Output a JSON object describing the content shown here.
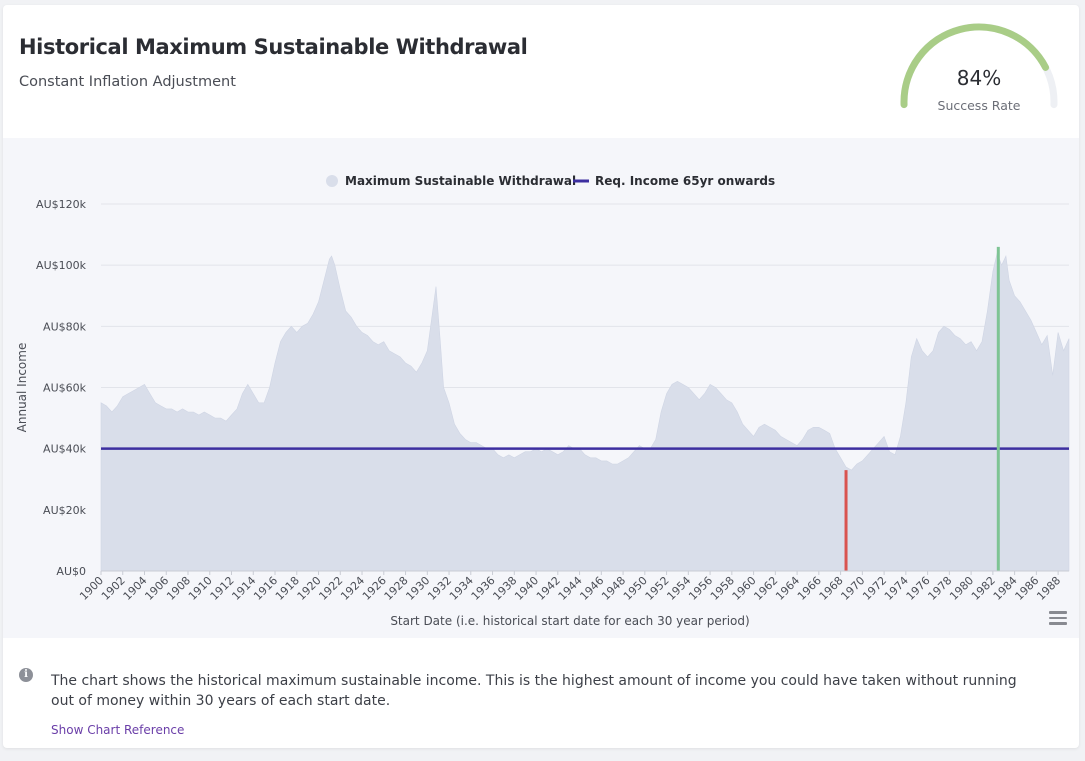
{
  "header": {
    "title": "Historical Maximum Sustainable Withdrawal",
    "subtitle": "Constant Inflation Adjustment"
  },
  "gauge": {
    "value": 84,
    "value_label": "84%",
    "label": "Success Rate",
    "color": "#a9cd87",
    "track_color": "#eef0f4"
  },
  "info": {
    "text": "The chart shows the historical maximum sustainable income. This is the highest amount of income you could have taken without running out of money within 30 years of each start date.",
    "link_label": "Show Chart Reference"
  },
  "chart_data": {
    "type": "area",
    "title": "",
    "xlabel": "Start Date (i.e. historical start date for each 30 year period)",
    "ylabel": "Annual Income",
    "x_range": [
      1900.0,
      1989.0
    ],
    "ylim": [
      0,
      120000
    ],
    "yticks": [
      0,
      20000,
      40000,
      60000,
      80000,
      100000,
      120000
    ],
    "ytick_labels": [
      "AU$0",
      "AU$20k",
      "AU$40k",
      "AU$60k",
      "AU$80k",
      "AU$100k",
      "AU$120k"
    ],
    "xtick_labels": [
      "1900",
      "1902",
      "1904",
      "1906",
      "1908",
      "1910",
      "1912",
      "1914",
      "1916",
      "1918",
      "1920",
      "1922",
      "1924",
      "1926",
      "1928",
      "1930",
      "1932",
      "1934",
      "1936",
      "1938",
      "1940",
      "1942",
      "1944",
      "1946",
      "1948",
      "1950",
      "1952",
      "1954",
      "1956",
      "1958",
      "1960",
      "1962",
      "1964",
      "1966",
      "1968",
      "1970",
      "1972",
      "1974",
      "1976",
      "1978",
      "1980",
      "1982",
      "1984",
      "1986",
      "1988"
    ],
    "grid": true,
    "legend_position": "top-center",
    "series": [
      {
        "name": "Maximum Sustainable Withdrawal",
        "type": "area",
        "color": "#d9deea",
        "points": [
          [
            1900.0,
            55000
          ],
          [
            1900.5,
            54000
          ],
          [
            1901.0,
            52000
          ],
          [
            1901.5,
            54000
          ],
          [
            1902.0,
            57000
          ],
          [
            1902.5,
            58000
          ],
          [
            1903.0,
            59000
          ],
          [
            1903.5,
            60000
          ],
          [
            1904.0,
            61000
          ],
          [
            1904.5,
            58000
          ],
          [
            1905.0,
            55000
          ],
          [
            1905.5,
            54000
          ],
          [
            1906.0,
            53000
          ],
          [
            1906.5,
            53000
          ],
          [
            1907.0,
            52000
          ],
          [
            1907.5,
            53000
          ],
          [
            1908.0,
            52000
          ],
          [
            1908.5,
            52000
          ],
          [
            1909.0,
            51000
          ],
          [
            1909.5,
            52000
          ],
          [
            1910.0,
            51000
          ],
          [
            1910.5,
            50000
          ],
          [
            1911.0,
            50000
          ],
          [
            1911.5,
            49000
          ],
          [
            1912.0,
            51000
          ],
          [
            1912.5,
            53000
          ],
          [
            1913.0,
            58000
          ],
          [
            1913.5,
            61000
          ],
          [
            1914.0,
            58000
          ],
          [
            1914.5,
            55000
          ],
          [
            1915.0,
            55000
          ],
          [
            1915.5,
            60000
          ],
          [
            1916.0,
            68000
          ],
          [
            1916.5,
            75000
          ],
          [
            1917.0,
            78000
          ],
          [
            1917.5,
            80000
          ],
          [
            1918.0,
            78000
          ],
          [
            1918.5,
            80000
          ],
          [
            1919.0,
            81000
          ],
          [
            1919.5,
            84000
          ],
          [
            1920.0,
            88000
          ],
          [
            1920.5,
            95000
          ],
          [
            1921.0,
            102000
          ],
          [
            1921.2,
            103000
          ],
          [
            1921.5,
            100000
          ],
          [
            1922.0,
            92000
          ],
          [
            1922.5,
            85000
          ],
          [
            1923.0,
            83000
          ],
          [
            1923.5,
            80000
          ],
          [
            1924.0,
            78000
          ],
          [
            1924.5,
            77000
          ],
          [
            1925.0,
            75000
          ],
          [
            1925.5,
            74000
          ],
          [
            1926.0,
            75000
          ],
          [
            1926.5,
            72000
          ],
          [
            1927.0,
            71000
          ],
          [
            1927.5,
            70000
          ],
          [
            1928.0,
            68000
          ],
          [
            1928.5,
            67000
          ],
          [
            1929.0,
            65000
          ],
          [
            1929.5,
            68000
          ],
          [
            1930.0,
            72000
          ],
          [
            1930.5,
            85000
          ],
          [
            1930.8,
            93000
          ],
          [
            1931.2,
            75000
          ],
          [
            1931.5,
            60000
          ],
          [
            1932.0,
            55000
          ],
          [
            1932.5,
            48000
          ],
          [
            1933.0,
            45000
          ],
          [
            1933.5,
            43000
          ],
          [
            1934.0,
            42000
          ],
          [
            1934.5,
            42000
          ],
          [
            1935.0,
            41000
          ],
          [
            1935.5,
            40000
          ],
          [
            1936.0,
            40000
          ],
          [
            1936.5,
            38000
          ],
          [
            1937.0,
            37000
          ],
          [
            1937.5,
            38000
          ],
          [
            1938.0,
            37000
          ],
          [
            1938.5,
            38000
          ],
          [
            1939.0,
            39000
          ],
          [
            1939.5,
            39000
          ],
          [
            1940.0,
            40000
          ],
          [
            1940.5,
            39000
          ],
          [
            1941.0,
            40000
          ],
          [
            1941.5,
            39000
          ],
          [
            1942.0,
            38000
          ],
          [
            1942.5,
            39000
          ],
          [
            1943.0,
            41000
          ],
          [
            1943.5,
            40000
          ],
          [
            1944.0,
            40000
          ],
          [
            1944.5,
            38000
          ],
          [
            1945.0,
            37000
          ],
          [
            1945.5,
            37000
          ],
          [
            1946.0,
            36000
          ],
          [
            1946.5,
            36000
          ],
          [
            1947.0,
            35000
          ],
          [
            1947.5,
            35000
          ],
          [
            1948.0,
            36000
          ],
          [
            1948.5,
            37000
          ],
          [
            1949.0,
            39000
          ],
          [
            1949.5,
            41000
          ],
          [
            1950.0,
            40000
          ],
          [
            1950.5,
            40000
          ],
          [
            1951.0,
            43000
          ],
          [
            1951.5,
            52000
          ],
          [
            1952.0,
            58000
          ],
          [
            1952.5,
            61000
          ],
          [
            1953.0,
            62000
          ],
          [
            1953.5,
            61000
          ],
          [
            1954.0,
            60000
          ],
          [
            1954.5,
            58000
          ],
          [
            1955.0,
            56000
          ],
          [
            1955.5,
            58000
          ],
          [
            1956.0,
            61000
          ],
          [
            1956.5,
            60000
          ],
          [
            1957.0,
            58000
          ],
          [
            1957.5,
            56000
          ],
          [
            1958.0,
            55000
          ],
          [
            1958.5,
            52000
          ],
          [
            1959.0,
            48000
          ],
          [
            1959.5,
            46000
          ],
          [
            1960.0,
            44000
          ],
          [
            1960.5,
            47000
          ],
          [
            1961.0,
            48000
          ],
          [
            1961.5,
            47000
          ],
          [
            1962.0,
            46000
          ],
          [
            1962.5,
            44000
          ],
          [
            1963.0,
            43000
          ],
          [
            1963.5,
            42000
          ],
          [
            1964.0,
            41000
          ],
          [
            1964.5,
            43000
          ],
          [
            1965.0,
            46000
          ],
          [
            1965.5,
            47000
          ],
          [
            1966.0,
            47000
          ],
          [
            1966.5,
            46000
          ],
          [
            1967.0,
            45000
          ],
          [
            1967.5,
            40000
          ],
          [
            1968.0,
            37000
          ],
          [
            1968.5,
            34000
          ],
          [
            1969.0,
            33000
          ],
          [
            1969.5,
            35000
          ],
          [
            1970.0,
            36000
          ],
          [
            1970.5,
            38000
          ],
          [
            1971.0,
            40000
          ],
          [
            1971.5,
            42000
          ],
          [
            1972.0,
            44000
          ],
          [
            1972.5,
            39000
          ],
          [
            1973.0,
            38000
          ],
          [
            1973.5,
            44000
          ],
          [
            1974.0,
            55000
          ],
          [
            1974.5,
            70000
          ],
          [
            1975.0,
            76000
          ],
          [
            1975.5,
            72000
          ],
          [
            1976.0,
            70000
          ],
          [
            1976.5,
            72000
          ],
          [
            1977.0,
            78000
          ],
          [
            1977.5,
            80000
          ],
          [
            1978.0,
            79000
          ],
          [
            1978.5,
            77000
          ],
          [
            1979.0,
            76000
          ],
          [
            1979.5,
            74000
          ],
          [
            1980.0,
            75000
          ],
          [
            1980.5,
            72000
          ],
          [
            1981.0,
            75000
          ],
          [
            1981.5,
            85000
          ],
          [
            1982.0,
            98000
          ],
          [
            1982.4,
            104000
          ],
          [
            1982.8,
            100000
          ],
          [
            1983.2,
            103000
          ],
          [
            1983.5,
            95000
          ],
          [
            1984.0,
            90000
          ],
          [
            1984.5,
            88000
          ],
          [
            1985.0,
            85000
          ],
          [
            1985.5,
            82000
          ],
          [
            1986.0,
            78000
          ],
          [
            1986.5,
            74000
          ],
          [
            1987.0,
            77000
          ],
          [
            1987.5,
            64000
          ],
          [
            1988.0,
            78000
          ],
          [
            1988.5,
            72000
          ],
          [
            1989.0,
            76000
          ]
        ]
      },
      {
        "name": "Req. Income 65yr onwards",
        "type": "line",
        "color": "#3d2fa0",
        "value": 40000
      }
    ],
    "markers": [
      {
        "x": 1968.5,
        "y": 33000,
        "color": "#d9534f"
      },
      {
        "x": 1982.5,
        "y": 106000,
        "color": "#7ec494"
      }
    ]
  }
}
